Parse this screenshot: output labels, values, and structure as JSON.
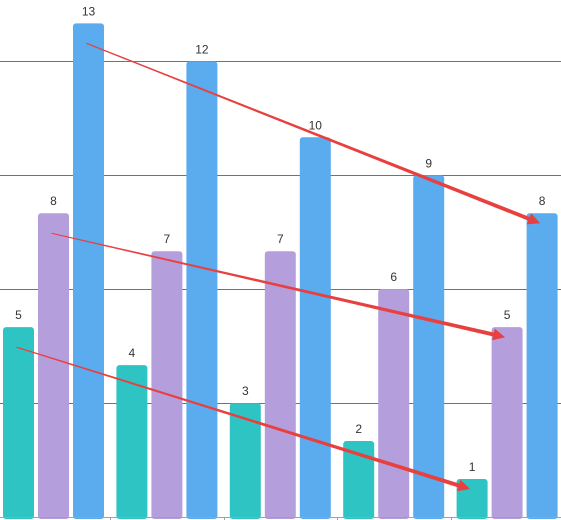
{
  "chart_data": {
    "type": "bar",
    "categories": [
      "",
      "",
      "",
      "",
      ""
    ],
    "series": [
      {
        "color": "#2ec4c4",
        "values": [
          5,
          4,
          3,
          2,
          1
        ]
      },
      {
        "color": "#b49fdc",
        "values": [
          8,
          7,
          7,
          6,
          5
        ]
      },
      {
        "color": "#5aacee",
        "values": [
          13,
          12,
          10,
          9,
          8
        ]
      }
    ],
    "ylim": [
      0,
      13.3
    ],
    "gridlines": [
      3,
      6,
      9,
      12
    ],
    "grid": true,
    "annotations": [
      {
        "type": "arrow",
        "color": "#e8403f",
        "from": {
          "category": 0,
          "series": 2
        },
        "to": {
          "category": 4,
          "series": 2
        }
      },
      {
        "type": "arrow",
        "color": "#e8403f",
        "from": {
          "category": 0,
          "series": 1
        },
        "to": {
          "category": 4,
          "series": 1
        }
      },
      {
        "type": "arrow",
        "color": "#e8403f",
        "from": {
          "category": 0,
          "series": 0
        },
        "to": {
          "category": 4,
          "series": 0
        }
      }
    ]
  }
}
